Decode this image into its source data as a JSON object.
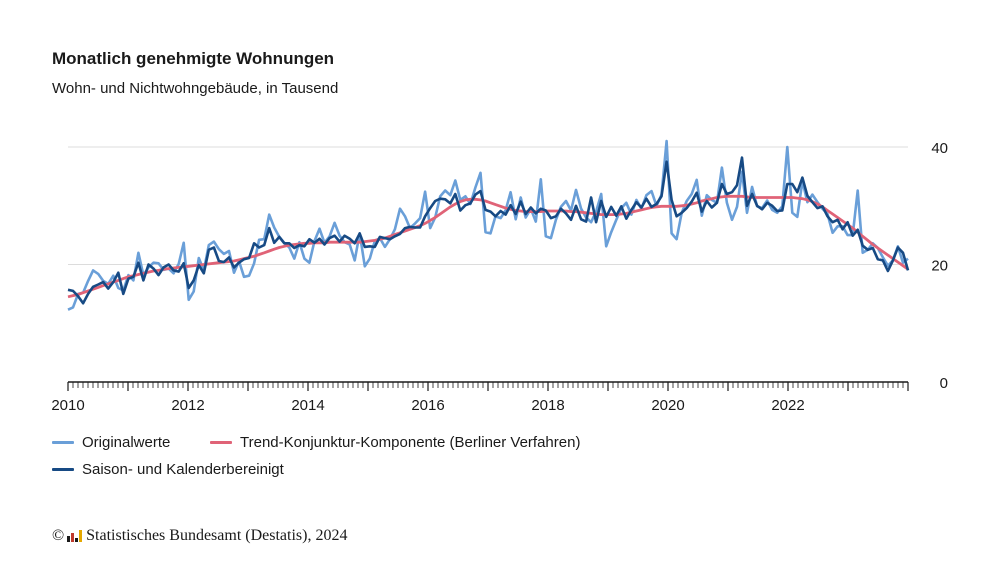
{
  "title": "Monatlich genehmigte Wohnungen",
  "subtitle": "Wohn- und Nichtwohngebäude, in Tausend",
  "footer": {
    "copyright_symbol": "©",
    "text": "Statistisches Bundesamt (Destatis), 2024",
    "logo": "destatis-logo"
  },
  "chart_data": {
    "type": "line",
    "x_start": "2010-01",
    "x_end": "2023-12",
    "frequency": "monthly",
    "x_ticks": [
      "2010",
      "2012",
      "2014",
      "2016",
      "2018",
      "2020",
      "2022"
    ],
    "y_ticks": [
      "0",
      "20",
      "40"
    ],
    "ylim": [
      0,
      40
    ],
    "grid": "horizontal",
    "legend_position": "bottom",
    "series": [
      {
        "name": "Originalwerte",
        "color": "#6a9fd8",
        "values": [
          12.3,
          12.7,
          15.0,
          15.2,
          17.2,
          19.0,
          18.4,
          17.2,
          16.7,
          18.1,
          16.0,
          15.6,
          18.2,
          17.3,
          22.0,
          18.2,
          19.5,
          20.3,
          20.2,
          19.1,
          19.3,
          18.5,
          20.1,
          23.7,
          14.0,
          15.4,
          21.1,
          19.0,
          23.3,
          23.9,
          22.6,
          21.8,
          22.3,
          18.6,
          20.6,
          17.9,
          18.1,
          20.2,
          24.2,
          24.3,
          28.5,
          26.3,
          24.7,
          23.7,
          22.9,
          21.0,
          23.8,
          21.0,
          20.3,
          24.0,
          26.1,
          23.7,
          24.8,
          27.1,
          24.9,
          23.8,
          23.4,
          20.7,
          25.3,
          19.7,
          21.0,
          24.0,
          24.5,
          23.0,
          24.3,
          26.0,
          29.5,
          28.2,
          26.2,
          27.0,
          27.9,
          32.4,
          26.2,
          28.0,
          31.6,
          32.6,
          31.8,
          34.3,
          31.0,
          31.6,
          30.3,
          33.1,
          35.6,
          25.5,
          25.3,
          28.2,
          27.9,
          29.2,
          32.3,
          27.7,
          31.4,
          28.0,
          29.5,
          27.3,
          34.5,
          24.8,
          24.5,
          27.6,
          29.8,
          30.8,
          29.2,
          32.7,
          29.5,
          28.0,
          27.2,
          29.0,
          32.0,
          23.1,
          25.5,
          27.6,
          29.6,
          30.5,
          28.5,
          31.0,
          29.5,
          31.8,
          32.5,
          30.0,
          31.9,
          41.0,
          25.3,
          24.3,
          28.8,
          30.8,
          32.0,
          34.4,
          28.3,
          31.8,
          31.0,
          30.5,
          36.5,
          30.5,
          27.6,
          29.8,
          35.8,
          28.8,
          33.2,
          29.9,
          29.6,
          30.9,
          29.3,
          28.8,
          29.9,
          40.0,
          28.8,
          28.1,
          34.2,
          30.6,
          31.9,
          30.6,
          29.5,
          28.6,
          25.4,
          26.5,
          26.5,
          25.0,
          25.0,
          32.6,
          22.0,
          22.5,
          23.6,
          22.8,
          21.2,
          19.8,
          20.7,
          23.1,
          20.3,
          21.0
        ]
      },
      {
        "name": "Trend-Konjunktur-Komponente (Berliner Verfahren)",
        "color": "#e06377",
        "values": [
          14.5,
          14.7,
          14.9,
          15.2,
          15.5,
          15.8,
          16.1,
          16.4,
          16.7,
          17.0,
          17.3,
          17.6,
          17.9,
          18.1,
          18.3,
          18.5,
          18.7,
          18.9,
          19.0,
          19.2,
          19.3,
          19.4,
          19.5,
          19.6,
          19.7,
          19.8,
          19.9,
          20.0,
          20.1,
          20.2,
          20.3,
          20.4,
          20.5,
          20.6,
          20.8,
          21.0,
          21.2,
          21.4,
          21.7,
          22.0,
          22.3,
          22.6,
          22.9,
          23.1,
          23.3,
          23.4,
          23.5,
          23.6,
          23.6,
          23.7,
          23.7,
          23.7,
          23.8,
          23.8,
          23.8,
          23.8,
          23.8,
          23.8,
          23.8,
          23.9,
          24.0,
          24.1,
          24.3,
          24.5,
          24.8,
          25.1,
          25.4,
          25.7,
          26.0,
          26.3,
          26.6,
          27.0,
          27.5,
          28.0,
          28.6,
          29.2,
          29.8,
          30.3,
          30.7,
          31.0,
          31.1,
          31.1,
          31.0,
          30.8,
          30.5,
          30.2,
          29.9,
          29.6,
          29.4,
          29.2,
          29.1,
          29.0,
          29.0,
          29.0,
          29.0,
          29.1,
          29.1,
          29.1,
          29.1,
          29.1,
          29.0,
          29.0,
          28.9,
          28.8,
          28.7,
          28.6,
          28.5,
          28.5,
          28.5,
          28.5,
          28.6,
          28.7,
          28.9,
          29.1,
          29.3,
          29.5,
          29.7,
          29.8,
          29.9,
          29.9,
          29.9,
          29.9,
          30.0,
          30.1,
          30.3,
          30.5,
          30.8,
          31.0,
          31.2,
          31.4,
          31.5,
          31.6,
          31.6,
          31.6,
          31.6,
          31.5,
          31.4,
          31.4,
          31.4,
          31.4,
          31.4,
          31.4,
          31.4,
          31.4,
          31.4,
          31.3,
          31.2,
          31.0,
          30.7,
          30.3,
          29.8,
          29.2,
          28.6,
          28.0,
          27.4,
          26.8,
          26.2,
          25.5,
          24.8,
          24.1,
          23.4,
          22.8,
          22.2,
          21.6,
          21.0,
          20.4,
          19.8,
          19.2
        ]
      },
      {
        "name": "Saison- und Kalenderbereinigt",
        "color": "#174a84",
        "values": [
          15.7,
          15.5,
          14.6,
          13.4,
          15.0,
          16.2,
          16.6,
          17.0,
          15.9,
          17.0,
          18.6,
          15.0,
          17.6,
          17.9,
          20.3,
          17.3,
          20.0,
          19.3,
          18.2,
          19.5,
          20.0,
          19.0,
          18.8,
          20.2,
          16.0,
          17.3,
          19.9,
          18.5,
          22.5,
          22.9,
          20.6,
          20.4,
          21.2,
          19.5,
          20.3,
          20.9,
          21.1,
          23.6,
          22.9,
          23.3,
          26.2,
          23.7,
          24.7,
          23.6,
          23.6,
          22.8,
          23.3,
          23.1,
          24.3,
          23.7,
          24.4,
          23.4,
          24.5,
          24.9,
          23.9,
          24.9,
          24.4,
          23.6,
          25.3,
          23.0,
          23.1,
          23.0,
          24.7,
          24.5,
          24.3,
          24.8,
          25.2,
          26.2,
          26.4,
          26.3,
          26.3,
          28.2,
          29.6,
          30.8,
          31.2,
          31.1,
          30.4,
          32.0,
          29.2,
          30.1,
          30.4,
          31.9,
          32.5,
          29.3,
          29.0,
          28.2,
          29.1,
          28.5,
          30.1,
          28.6,
          30.7,
          28.6,
          29.7,
          28.7,
          29.5,
          29.2,
          27.9,
          28.2,
          29.5,
          28.7,
          27.6,
          30.0,
          27.7,
          27.3,
          31.4,
          27.2,
          30.8,
          28.1,
          29.8,
          28.3,
          29.9,
          27.8,
          29.3,
          30.6,
          29.7,
          31.2,
          29.8,
          30.3,
          31.6,
          37.5,
          31.0,
          28.2,
          28.8,
          29.6,
          30.7,
          32.2,
          29.0,
          30.8,
          29.7,
          30.5,
          33.7,
          32.0,
          32.3,
          33.5,
          38.2,
          30.0,
          32.0,
          30.0,
          29.4,
          30.5,
          30.0,
          29.1,
          29.2,
          33.7,
          33.7,
          32.3,
          34.8,
          31.7,
          30.6,
          29.6,
          29.9,
          28.2,
          27.2,
          27.6,
          26.0,
          27.2,
          24.9,
          25.9,
          23.2,
          22.5,
          22.8,
          20.9,
          20.7,
          18.9,
          20.7,
          22.9,
          22.0,
          19.0
        ]
      }
    ]
  }
}
